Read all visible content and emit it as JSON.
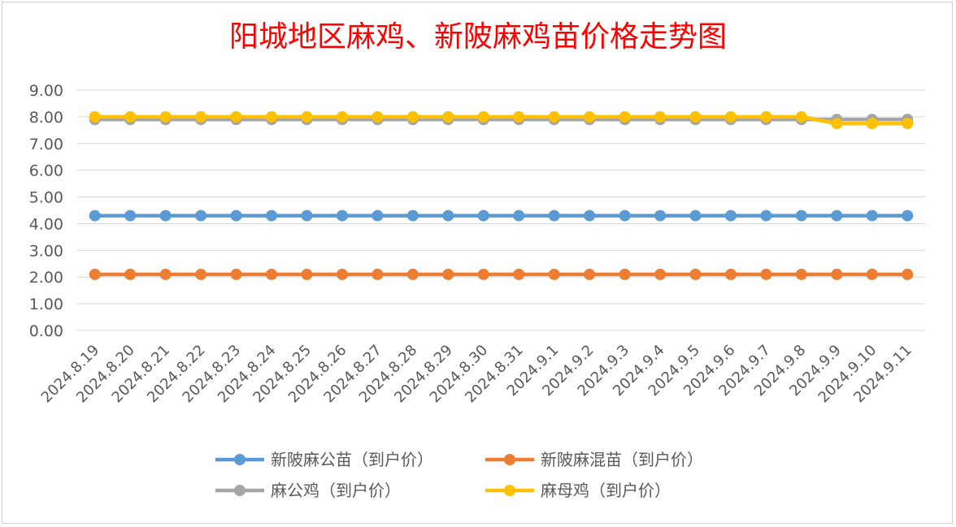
{
  "chart_data": {
    "type": "line",
    "title": "阳城地区麻鸡、新陂麻鸡苗价格走势图",
    "xlabel": "",
    "ylabel": "",
    "ylim": [
      0,
      9
    ],
    "yticks": [
      "0.00",
      "1.00",
      "2.00",
      "3.00",
      "4.00",
      "5.00",
      "6.00",
      "7.00",
      "8.00",
      "9.00"
    ],
    "grid": true,
    "legend_position": "bottom",
    "categories": [
      "2024.8.19",
      "2024.8.20",
      "2024.8.21",
      "2024.8.22",
      "2024.8.23",
      "2024.8.24",
      "2024.8.25",
      "2024.8.26",
      "2024.8.27",
      "2024.8.28",
      "2024.8.29",
      "2024.8.30",
      "2024.8.31",
      "2024.9.1",
      "2024.9.2",
      "2024.9.3",
      "2024.9.4",
      "2024.9.5",
      "2024.9.6",
      "2024.9.7",
      "2024.9.8",
      "2024.9.9",
      "2024.9.10",
      "2024.9.11"
    ],
    "series": [
      {
        "name": "新陂麻公苗（到户价）",
        "color": "#5b9bd5",
        "values": [
          4.3,
          4.3,
          4.3,
          4.3,
          4.3,
          4.3,
          4.3,
          4.3,
          4.3,
          4.3,
          4.3,
          4.3,
          4.3,
          4.3,
          4.3,
          4.3,
          4.3,
          4.3,
          4.3,
          4.3,
          4.3,
          4.3,
          4.3,
          4.3
        ]
      },
      {
        "name": "新陂麻混苗（到户价）",
        "color": "#ed7d31",
        "values": [
          2.1,
          2.1,
          2.1,
          2.1,
          2.1,
          2.1,
          2.1,
          2.1,
          2.1,
          2.1,
          2.1,
          2.1,
          2.1,
          2.1,
          2.1,
          2.1,
          2.1,
          2.1,
          2.1,
          2.1,
          2.1,
          2.1,
          2.1,
          2.1
        ]
      },
      {
        "name": "麻公鸡（到户价）",
        "color": "#a5a5a5",
        "values": [
          7.9,
          7.9,
          7.9,
          7.9,
          7.9,
          7.9,
          7.9,
          7.9,
          7.9,
          7.9,
          7.9,
          7.9,
          7.9,
          7.9,
          7.9,
          7.9,
          7.9,
          7.9,
          7.9,
          7.9,
          7.9,
          7.9,
          7.9,
          7.9
        ]
      },
      {
        "name": "麻母鸡（到户价）",
        "color": "#ffc000",
        "values": [
          8.0,
          8.0,
          8.0,
          8.0,
          8.0,
          8.0,
          8.0,
          8.0,
          8.0,
          8.0,
          8.0,
          8.0,
          8.0,
          8.0,
          8.0,
          8.0,
          8.0,
          8.0,
          8.0,
          8.0,
          8.0,
          7.75,
          7.75,
          7.75
        ]
      }
    ]
  }
}
